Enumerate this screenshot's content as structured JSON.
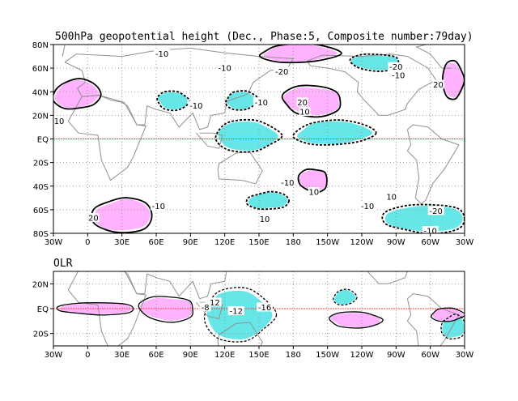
{
  "chart_data": [
    {
      "type": "heatmap",
      "title": "500hPa geopotential height (Dec., Phase:5, Composite number:79day)",
      "x_ticks": [
        "30W",
        "0",
        "30E",
        "60E",
        "90E",
        "120E",
        "150E",
        "180",
        "150W",
        "120W",
        "90W",
        "60W",
        "30W"
      ],
      "y_ticks": [
        "80N",
        "60N",
        "40N",
        "20N",
        "EQ",
        "20S",
        "40S",
        "60S",
        "80S"
      ],
      "ylim": [
        -80,
        80
      ],
      "grid": true,
      "colors": {
        "positive_shading": "#ffb3ff",
        "negative_shading": "#66e6e6",
        "equator": "#ff4040",
        "coast": "#909090"
      },
      "contour_labels": [
        {
          "text": "-10",
          "lon": 65,
          "lat": 72
        },
        {
          "text": "-10",
          "lon": 120,
          "lat": 60
        },
        {
          "text": "-10",
          "lon": 95,
          "lat": 28
        },
        {
          "text": "-20",
          "lon": 170,
          "lat": 57
        },
        {
          "text": "10",
          "lon": -25,
          "lat": 15
        },
        {
          "text": "-10",
          "lon": 152,
          "lat": 31
        },
        {
          "text": "-20",
          "lon": 270,
          "lat": 61
        },
        {
          "text": "-10",
          "lon": 272,
          "lat": 54
        },
        {
          "text": "20",
          "lon": 188,
          "lat": 31
        },
        {
          "text": "10",
          "lon": 190,
          "lat": 23
        },
        {
          "text": "20",
          "lon": 307,
          "lat": 46
        },
        {
          "text": "-10",
          "lon": 62,
          "lat": -57
        },
        {
          "text": "20",
          "lon": 5,
          "lat": -67
        },
        {
          "text": "-10",
          "lon": 175,
          "lat": -37
        },
        {
          "text": "10",
          "lon": 198,
          "lat": -45
        },
        {
          "text": "10",
          "lon": 155,
          "lat": -68
        },
        {
          "text": "-10",
          "lon": 245,
          "lat": -57
        },
        {
          "text": "10",
          "lon": 266,
          "lat": -49
        },
        {
          "text": "-20",
          "lon": 305,
          "lat": -61
        },
        {
          "text": "-10",
          "lon": 300,
          "lat": -78
        }
      ],
      "shaded_regions": [
        {
          "sign": "negative",
          "lon_range": [
            110,
            170
          ],
          "lat_range": [
            -10,
            15
          ]
        },
        {
          "sign": "negative",
          "lon_range": [
            180,
            250
          ],
          "lat_range": [
            -5,
            15
          ]
        },
        {
          "sign": "negative",
          "lon_range": [
            140,
            175
          ],
          "lat_range": [
            -60,
            -45
          ]
        },
        {
          "sign": "negative",
          "lon_range": [
            260,
            330
          ],
          "lat_range": [
            -80,
            -55
          ]
        },
        {
          "sign": "negative",
          "lon_range": [
            230,
            275
          ],
          "lat_range": [
            58,
            72
          ]
        },
        {
          "sign": "negative",
          "lon_range": [
            60,
            90
          ],
          "lat_range": [
            25,
            40
          ]
        },
        {
          "sign": "negative",
          "lon_range": [
            120,
            150
          ],
          "lat_range": [
            25,
            40
          ]
        },
        {
          "sign": "positive",
          "lon_range": [
            -30,
            10
          ],
          "lat_range": [
            25,
            50
          ]
        },
        {
          "sign": "positive",
          "lon_range": [
            5,
            55
          ],
          "lat_range": [
            -80,
            -50
          ]
        },
        {
          "sign": "positive",
          "lon_range": [
            185,
            210
          ],
          "lat_range": [
            -45,
            -25
          ]
        },
        {
          "sign": "positive",
          "lon_range": [
            170,
            225
          ],
          "lat_range": [
            20,
            45
          ]
        },
        {
          "sign": "positive",
          "lon_range": [
            310,
            330
          ],
          "lat_range": [
            35,
            65
          ]
        },
        {
          "sign": "positive",
          "lon_range": [
            150,
            220
          ],
          "lat_range": [
            65,
            80
          ]
        }
      ]
    },
    {
      "type": "heatmap",
      "title": "OLR",
      "x_ticks": [
        "30W",
        "0",
        "30E",
        "60E",
        "90E",
        "120E",
        "150E",
        "180",
        "150W",
        "120W",
        "90W",
        "60W",
        "30W"
      ],
      "y_ticks": [
        "20N",
        "EQ",
        "20S"
      ],
      "ylim": [
        -30,
        30
      ],
      "grid": true,
      "contour_labels": [
        {
          "text": "-12",
          "lon": 110,
          "lat": 5
        },
        {
          "text": "-8",
          "lon": 103,
          "lat": 1
        },
        {
          "text": "-12",
          "lon": 130,
          "lat": -2
        },
        {
          "text": "-16",
          "lon": 155,
          "lat": 1
        }
      ],
      "shaded_regions": [
        {
          "sign": "negative",
          "lon_range": [
            100,
            165
          ],
          "lat_range": [
            -25,
            15
          ]
        },
        {
          "sign": "negative",
          "lon_range": [
            215,
            235
          ],
          "lat_range": [
            3,
            15
          ]
        },
        {
          "sign": "negative",
          "lon_range": [
            310,
            330
          ],
          "lat_range": [
            -25,
            -5
          ]
        },
        {
          "sign": "positive",
          "lon_range": [
            -25,
            40
          ],
          "lat_range": [
            -5,
            5
          ]
        },
        {
          "sign": "positive",
          "lon_range": [
            45,
            95
          ],
          "lat_range": [
            -10,
            10
          ]
        },
        {
          "sign": "positive",
          "lon_range": [
            210,
            260
          ],
          "lat_range": [
            -15,
            -3
          ]
        },
        {
          "sign": "positive",
          "lon_range": [
            300,
            330
          ],
          "lat_range": [
            -10,
            0
          ]
        }
      ]
    }
  ]
}
